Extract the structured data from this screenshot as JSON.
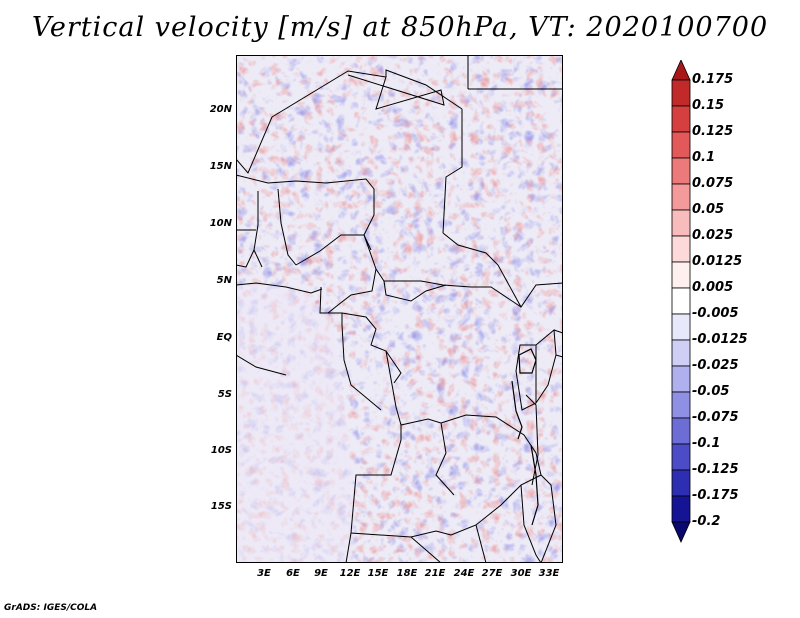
{
  "title": "Vertical velocity [m/s] at 850hPa, VT: 2020100700",
  "credit": "GrADS: IGES/COLA",
  "map": {
    "type": "filled-contour-map",
    "variable": "Vertical velocity",
    "units": "m/s",
    "level": "850hPa",
    "valid_time": "2020100700",
    "lon_range": [
      0,
      34
    ],
    "lat_range": [
      -22,
      24.5
    ],
    "x_ticks": [
      "3E",
      "6E",
      "9E",
      "12E",
      "15E",
      "18E",
      "21E",
      "24E",
      "27E",
      "30E",
      "33E"
    ],
    "y_ticks": [
      "20N",
      "15N",
      "10N",
      "5N",
      "EQ",
      "5S",
      "10S",
      "15S"
    ]
  },
  "colorbar": {
    "levels": [
      "0.175",
      "0.15",
      "0.125",
      "0.1",
      "0.075",
      "0.05",
      "0.025",
      "0.0125",
      "0.005",
      "-0.005",
      "-0.0125",
      "-0.025",
      "-0.05",
      "-0.075",
      "-0.1",
      "-0.125",
      "-0.175",
      "-0.2"
    ],
    "colors": [
      "#a81818",
      "#c22a2a",
      "#d63f3f",
      "#e35858",
      "#ec7a7a",
      "#f49a9a",
      "#f9bcbc",
      "#fdd9d9",
      "#fff0f0",
      "#ffffff",
      "#e8e8fb",
      "#cfcff6",
      "#b0b0ee",
      "#8f8fe3",
      "#6d6dd6",
      "#4c4cc6",
      "#2e2eb2",
      "#141494",
      "#08086e"
    ]
  }
}
